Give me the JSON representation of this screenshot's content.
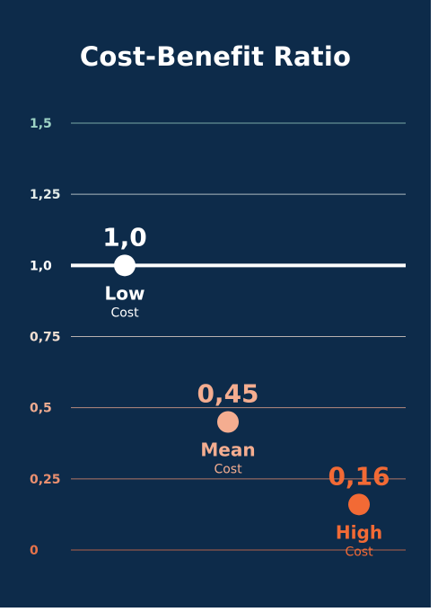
{
  "title": "Cost-Benefit Ratio",
  "chart_data": {
    "type": "scatter",
    "title": "Cost-Benefit Ratio",
    "ylim": [
      0,
      1.5
    ],
    "y_ticks": [
      {
        "value": 0,
        "label": "0",
        "color": "#e8734a"
      },
      {
        "value": 0.25,
        "label": "0,25",
        "color": "#eb9070"
      },
      {
        "value": 0.5,
        "label": "0,5",
        "color": "#efab90"
      },
      {
        "value": 0.75,
        "label": "0,75",
        "color": "#f2dfd2"
      },
      {
        "value": 1.0,
        "label": "1,0",
        "color": "#ffffff"
      },
      {
        "value": 1.25,
        "label": "1,25",
        "color": "#e3ece9"
      },
      {
        "value": 1.5,
        "label": "1,5",
        "color": "#9dd3c5"
      }
    ],
    "reference_line": {
      "value": 1.0,
      "color": "#ffffff"
    },
    "points": [
      {
        "name": "Low",
        "sub": "Cost",
        "value": 1.0,
        "value_label": "1,0",
        "color": "#ffffff"
      },
      {
        "name": "Mean",
        "sub": "Cost",
        "value": 0.45,
        "value_label": "0,45",
        "color": "#f4ad90"
      },
      {
        "name": "High",
        "sub": "Cost",
        "value": 0.16,
        "value_label": "0,16",
        "color": "#f26a35"
      }
    ],
    "grid": true,
    "legend": "none"
  }
}
